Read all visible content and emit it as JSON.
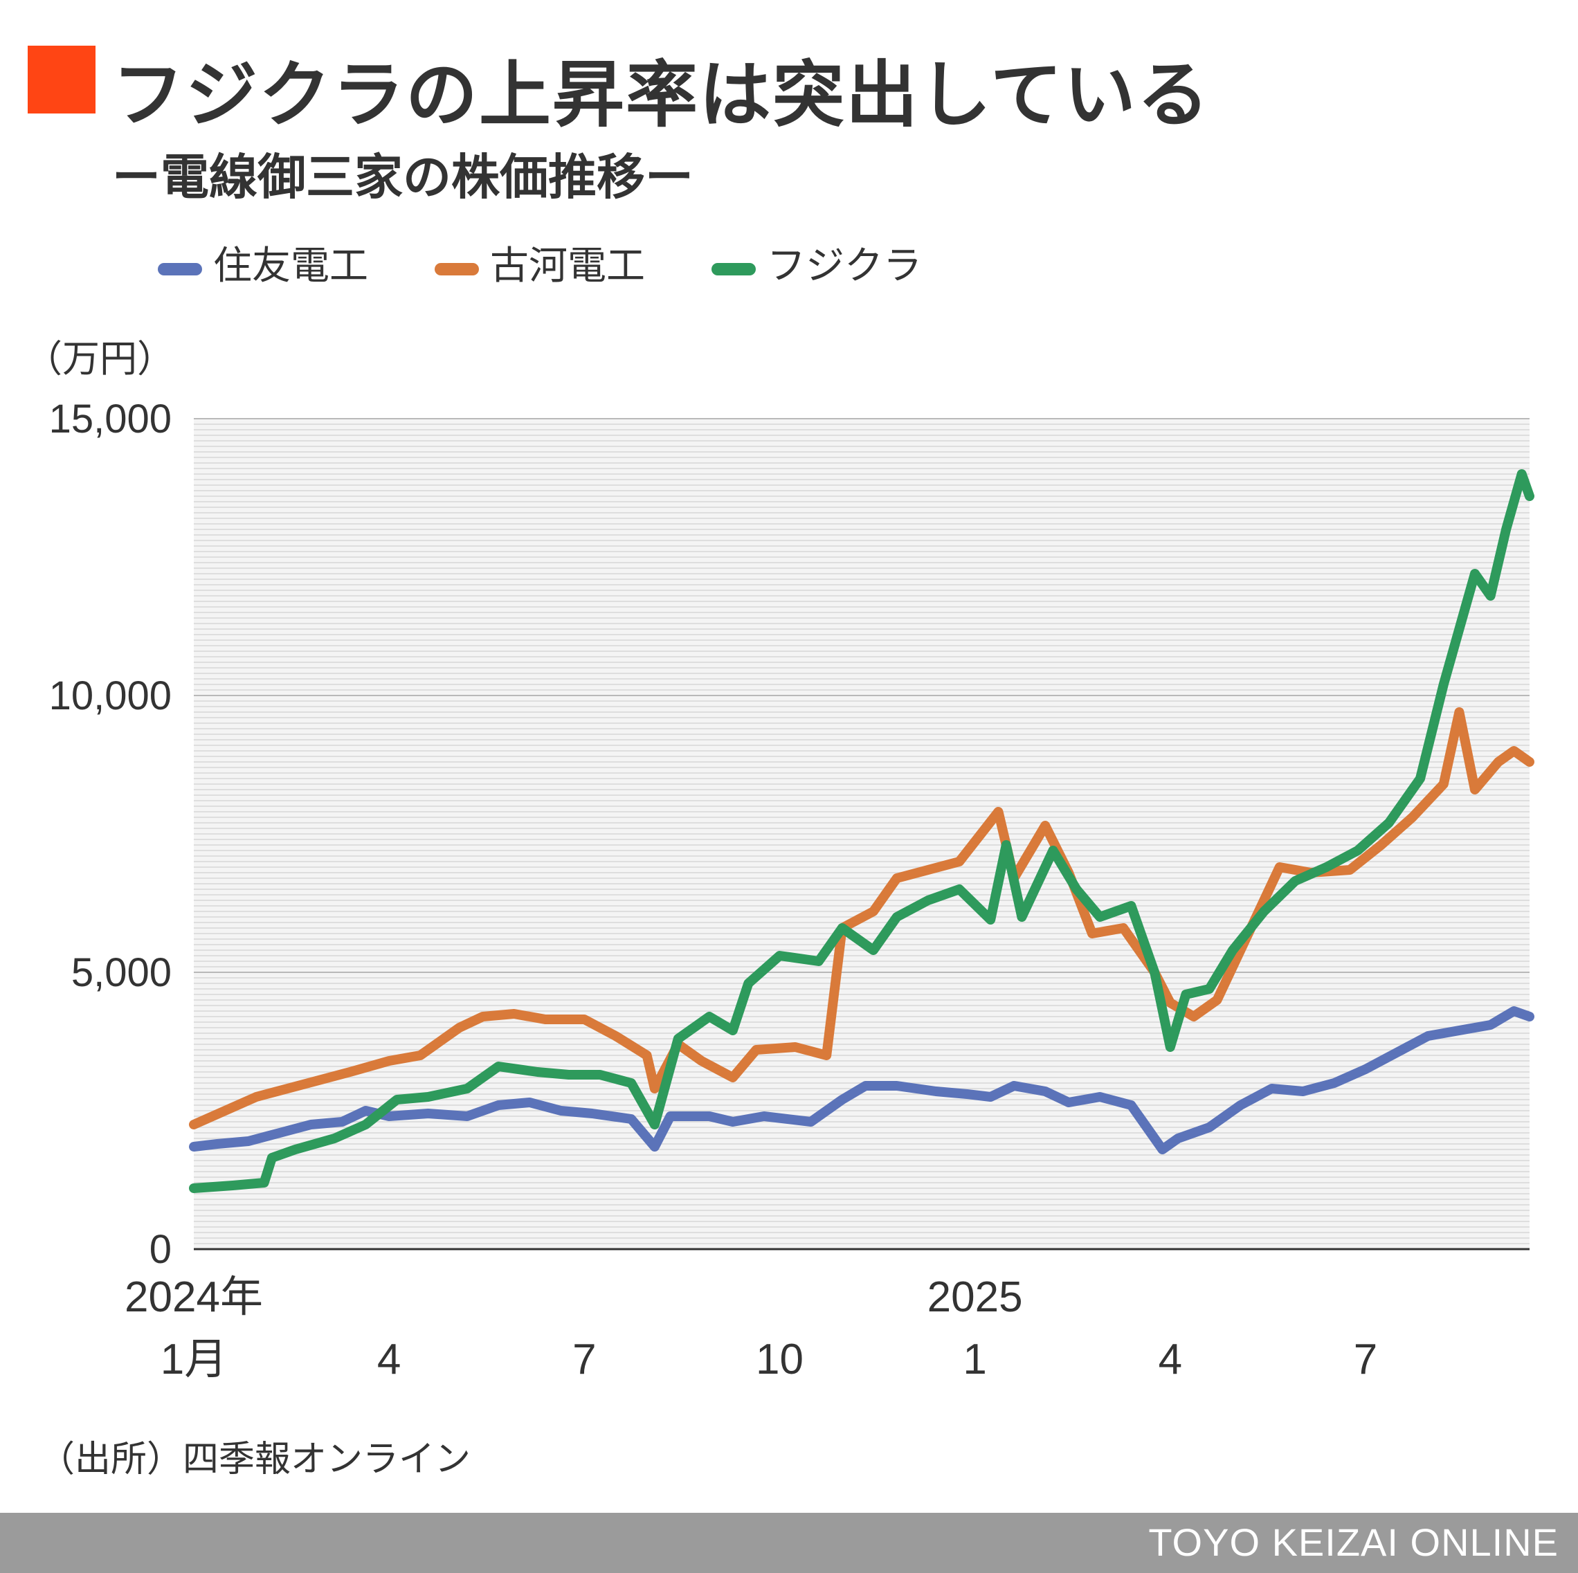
{
  "header": {
    "title": "フジクラの上昇率は突出している",
    "subtitle": "ー電線御三家の株価推移ー",
    "accent_color": "#ff4514"
  },
  "chart_unit": "（万円）",
  "source": "（出所）四季報オンライン",
  "footer": {
    "brand": "TOYO KEIZAI ONLINE",
    "bar_color": "#9b9b9b"
  },
  "chart_data": {
    "type": "line",
    "title": "フジクラの上昇率は突出している",
    "subtitle": "ー電線御三家の株価推移ー",
    "ylabel": "（万円）",
    "ylim": [
      0,
      15000
    ],
    "xlim": [
      2024.0,
      2025.71
    ],
    "grid": true,
    "legend_position": "top",
    "y_ticks": [
      {
        "value": 0,
        "label": "0"
      },
      {
        "value": 5000,
        "label": "5,000"
      },
      {
        "value": 10000,
        "label": "10,000"
      },
      {
        "value": 15000,
        "label": "15,000"
      }
    ],
    "x_ticks": [
      {
        "value": 2024.0,
        "year": "2024年",
        "month": "1月"
      },
      {
        "value": 2024.25,
        "year": "",
        "month": "4"
      },
      {
        "value": 2024.5,
        "year": "",
        "month": "7"
      },
      {
        "value": 2024.75,
        "year": "",
        "month": "10"
      },
      {
        "value": 2025.0,
        "year": "2025",
        "month": "1"
      },
      {
        "value": 2025.25,
        "year": "",
        "month": "4"
      },
      {
        "value": 2025.5,
        "year": "",
        "month": "7"
      }
    ],
    "series": [
      {
        "name": "住友電工",
        "color": "#5b73b9",
        "points": [
          [
            2024.0,
            1850
          ],
          [
            2024.03,
            1900
          ],
          [
            2024.07,
            1950
          ],
          [
            2024.11,
            2100
          ],
          [
            2024.15,
            2250
          ],
          [
            2024.19,
            2300
          ],
          [
            2024.22,
            2500
          ],
          [
            2024.25,
            2400
          ],
          [
            2024.3,
            2450
          ],
          [
            2024.35,
            2400
          ],
          [
            2024.39,
            2600
          ],
          [
            2024.43,
            2650
          ],
          [
            2024.47,
            2500
          ],
          [
            2024.51,
            2450
          ],
          [
            2024.56,
            2350
          ],
          [
            2024.59,
            1850
          ],
          [
            2024.61,
            2400
          ],
          [
            2024.66,
            2400
          ],
          [
            2024.69,
            2300
          ],
          [
            2024.73,
            2400
          ],
          [
            2024.79,
            2300
          ],
          [
            2024.83,
            2700
          ],
          [
            2024.86,
            2950
          ],
          [
            2024.9,
            2950
          ],
          [
            2024.95,
            2850
          ],
          [
            2024.99,
            2800
          ],
          [
            2025.02,
            2750
          ],
          [
            2025.05,
            2950
          ],
          [
            2025.09,
            2850
          ],
          [
            2025.12,
            2650
          ],
          [
            2025.16,
            2750
          ],
          [
            2025.2,
            2600
          ],
          [
            2025.24,
            1800
          ],
          [
            2025.26,
            2000
          ],
          [
            2025.3,
            2200
          ],
          [
            2025.34,
            2600
          ],
          [
            2025.38,
            2900
          ],
          [
            2025.42,
            2850
          ],
          [
            2025.46,
            3000
          ],
          [
            2025.5,
            3250
          ],
          [
            2025.54,
            3550
          ],
          [
            2025.58,
            3850
          ],
          [
            2025.62,
            3950
          ],
          [
            2025.66,
            4050
          ],
          [
            2025.69,
            4300
          ],
          [
            2025.71,
            4200
          ]
        ]
      },
      {
        "name": "古河電工",
        "color": "#d97a3a",
        "points": [
          [
            2024.0,
            2250
          ],
          [
            2024.04,
            2500
          ],
          [
            2024.08,
            2750
          ],
          [
            2024.12,
            2900
          ],
          [
            2024.16,
            3050
          ],
          [
            2024.2,
            3200
          ],
          [
            2024.25,
            3400
          ],
          [
            2024.29,
            3500
          ],
          [
            2024.34,
            4000
          ],
          [
            2024.37,
            4200
          ],
          [
            2024.41,
            4250
          ],
          [
            2024.45,
            4150
          ],
          [
            2024.5,
            4150
          ],
          [
            2024.54,
            3850
          ],
          [
            2024.58,
            3500
          ],
          [
            2024.59,
            2900
          ],
          [
            2024.62,
            3700
          ],
          [
            2024.65,
            3400
          ],
          [
            2024.69,
            3100
          ],
          [
            2024.72,
            3600
          ],
          [
            2024.77,
            3650
          ],
          [
            2024.81,
            3500
          ],
          [
            2024.83,
            5800
          ],
          [
            2024.87,
            6100
          ],
          [
            2024.9,
            6700
          ],
          [
            2024.94,
            6850
          ],
          [
            2024.98,
            7000
          ],
          [
            2025.03,
            7900
          ],
          [
            2025.05,
            6700
          ],
          [
            2025.09,
            7650
          ],
          [
            2025.12,
            6800
          ],
          [
            2025.15,
            5700
          ],
          [
            2025.19,
            5800
          ],
          [
            2025.23,
            5000
          ],
          [
            2025.25,
            4450
          ],
          [
            2025.28,
            4200
          ],
          [
            2025.31,
            4500
          ],
          [
            2025.35,
            5700
          ],
          [
            2025.39,
            6900
          ],
          [
            2025.43,
            6800
          ],
          [
            2025.48,
            6850
          ],
          [
            2025.52,
            7300
          ],
          [
            2025.56,
            7800
          ],
          [
            2025.6,
            8400
          ],
          [
            2025.62,
            9700
          ],
          [
            2025.64,
            8300
          ],
          [
            2025.67,
            8800
          ],
          [
            2025.69,
            9000
          ],
          [
            2025.71,
            8800
          ]
        ]
      },
      {
        "name": "フジクラ",
        "color": "#2e9a5c",
        "points": [
          [
            2024.0,
            1100
          ],
          [
            2024.05,
            1150
          ],
          [
            2024.09,
            1200
          ],
          [
            2024.1,
            1650
          ],
          [
            2024.13,
            1800
          ],
          [
            2024.18,
            2000
          ],
          [
            2024.22,
            2250
          ],
          [
            2024.26,
            2700
          ],
          [
            2024.3,
            2750
          ],
          [
            2024.35,
            2900
          ],
          [
            2024.39,
            3300
          ],
          [
            2024.44,
            3200
          ],
          [
            2024.48,
            3150
          ],
          [
            2024.52,
            3150
          ],
          [
            2024.56,
            3000
          ],
          [
            2024.59,
            2250
          ],
          [
            2024.62,
            3800
          ],
          [
            2024.66,
            4200
          ],
          [
            2024.69,
            3950
          ],
          [
            2024.71,
            4800
          ],
          [
            2024.75,
            5300
          ],
          [
            2024.8,
            5200
          ],
          [
            2024.83,
            5800
          ],
          [
            2024.87,
            5400
          ],
          [
            2024.9,
            6000
          ],
          [
            2024.94,
            6300
          ],
          [
            2024.98,
            6500
          ],
          [
            2025.02,
            5950
          ],
          [
            2025.04,
            7300
          ],
          [
            2025.06,
            6000
          ],
          [
            2025.1,
            7200
          ],
          [
            2025.13,
            6500
          ],
          [
            2025.16,
            6000
          ],
          [
            2025.2,
            6200
          ],
          [
            2025.23,
            5000
          ],
          [
            2025.25,
            3650
          ],
          [
            2025.27,
            4600
          ],
          [
            2025.3,
            4700
          ],
          [
            2025.33,
            5400
          ],
          [
            2025.37,
            6100
          ],
          [
            2025.41,
            6650
          ],
          [
            2025.45,
            6900
          ],
          [
            2025.49,
            7200
          ],
          [
            2025.53,
            7700
          ],
          [
            2025.57,
            8500
          ],
          [
            2025.6,
            10200
          ],
          [
            2025.62,
            11200
          ],
          [
            2025.64,
            12200
          ],
          [
            2025.66,
            11800
          ],
          [
            2025.68,
            13000
          ],
          [
            2025.7,
            14000
          ],
          [
            2025.71,
            13600
          ]
        ]
      }
    ]
  }
}
